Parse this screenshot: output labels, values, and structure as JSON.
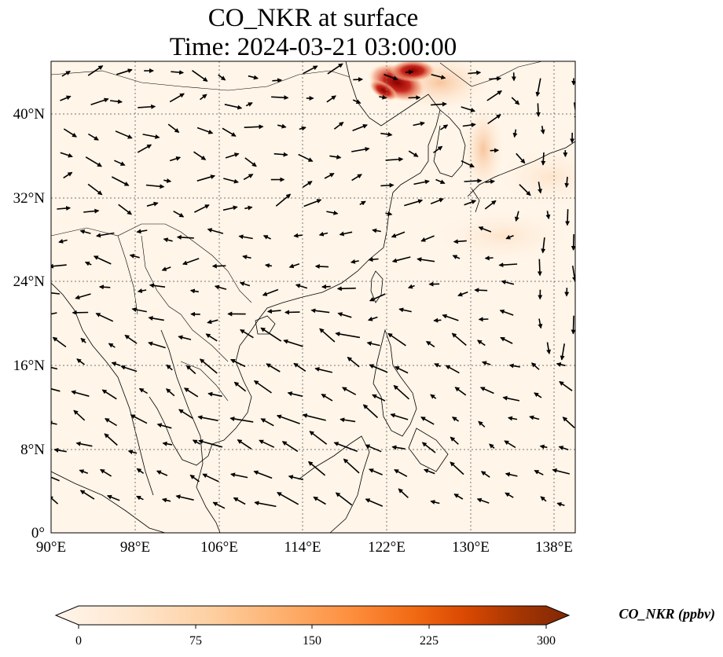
{
  "title_line1": "CO_NKR at surface",
  "title_line2": "Time: 2024-03-21 03:00:00",
  "map": {
    "lon_range": [
      90,
      140
    ],
    "lat_range": [
      0,
      45
    ],
    "lon_ticks": [
      "90°E",
      "98°E",
      "106°E",
      "114°E",
      "122°E",
      "130°E",
      "138°E"
    ],
    "lat_ticks": [
      "0°",
      "8°N",
      "16°N",
      "24°N",
      "32°N",
      "40°N"
    ],
    "background_color": "#fff5e8",
    "plume": {
      "name": "CO plume over Bohai / northeast China",
      "peak_value_ppbv": 300,
      "center_lon": 124.5,
      "center_lat": 43.3
    },
    "wind_arrows": "vector field shown as black arrows"
  },
  "colorbar": {
    "label": "CO_NKR (ppbv)",
    "ticks": [
      "0",
      "75",
      "150",
      "225",
      "300"
    ],
    "min": 0,
    "max": 300,
    "colors": [
      "#fff5eb",
      "#fee6ce",
      "#fdd0a2",
      "#fdae6b",
      "#fd8d3c",
      "#f16913",
      "#d94801",
      "#a63603",
      "#7f2704"
    ]
  }
}
